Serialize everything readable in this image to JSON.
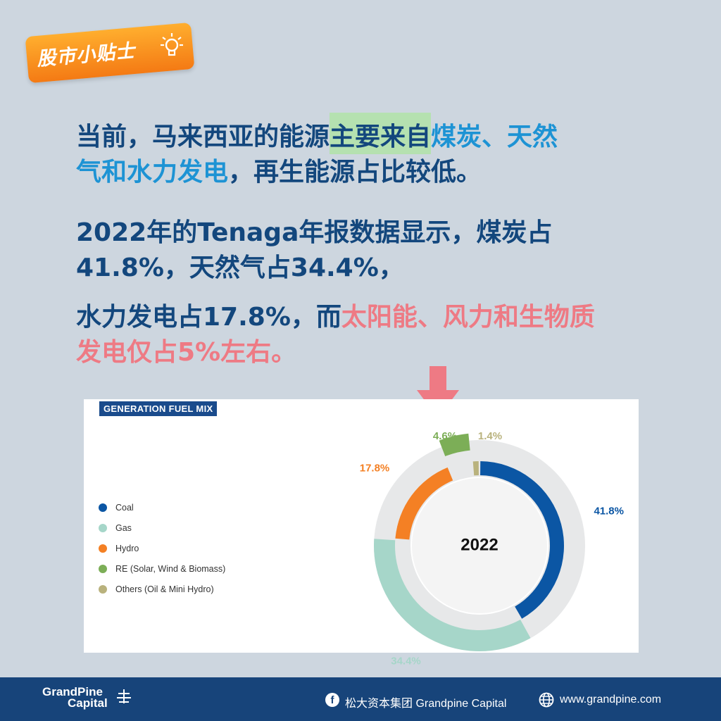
{
  "badge": {
    "label": "股市小贴士",
    "icon": "lightbulb-icon"
  },
  "headline1": {
    "part1": "当前，马来西亚的能源",
    "part2": "主要来自",
    "part3": "煤炭、天然",
    "part4": "气和水力发电",
    "part5": "，再生能源占比较低。"
  },
  "headline2": {
    "line1": "2022年的Tenaga年报数据显示，煤炭占",
    "line2": "41.8%，天然气占34.4%，"
  },
  "headline3": {
    "part1": "水力发电占17.8%，而",
    "part2": "太阳能、风力和生物质",
    "part3": "发电仅占5%左右。"
  },
  "colors": {
    "coal": "#0b56a4",
    "gas": "#a6d6c9",
    "hydro": "#f48024",
    "re": "#7cae57",
    "others": "#b9b27d",
    "pink_accent": "#ee7a84",
    "footer_bg": "#17447a"
  },
  "chart_data": {
    "type": "pie",
    "title": "GENERATION FUEL MIX",
    "center_label": "2022",
    "legend": "left",
    "slices": [
      {
        "name": "Coal",
        "value": 41.8,
        "label": "41.8%",
        "color": "#0b56a4"
      },
      {
        "name": "Gas",
        "value": 34.4,
        "label": "34.4%",
        "color": "#a6d6c9"
      },
      {
        "name": "Hydro",
        "value": 17.8,
        "label": "17.8%",
        "color": "#f48024"
      },
      {
        "name": "RE (Solar, Wind & Biomass)",
        "value": 4.6,
        "label": "4.6%",
        "color": "#7cae57"
      },
      {
        "name": "Others (Oil & Mini Hydro)",
        "value": 1.4,
        "label": "1.4%",
        "color": "#b9b27d"
      }
    ]
  },
  "footer": {
    "logo_line1": "GrandPine",
    "logo_line2": "Capital",
    "facebook_text": "松大资本集团 Grandpine Capital",
    "website": "www.grandpine.com"
  }
}
